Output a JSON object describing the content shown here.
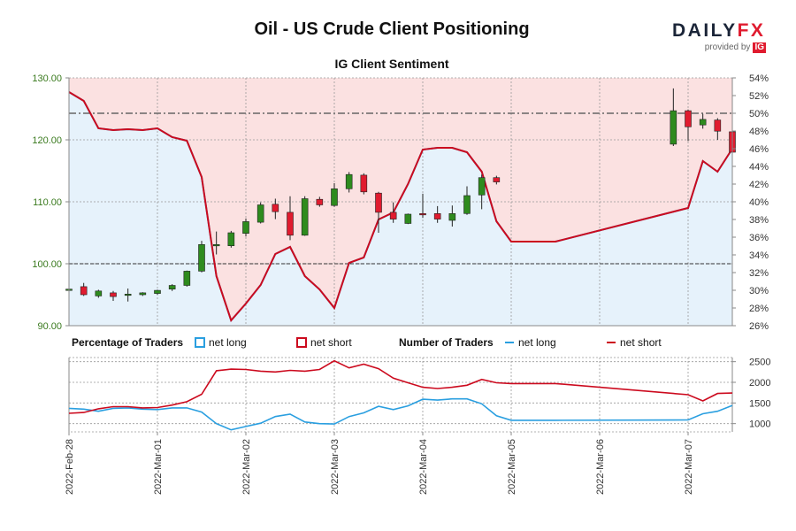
{
  "title": "Oil - US Crude Client Positioning",
  "subtitle": "IG Client Sentiment",
  "brand": {
    "name": "DAILY",
    "name_accent": "FX",
    "tagline": "provided by",
    "partner": "IG"
  },
  "colors": {
    "net_long": "#2a9fe0",
    "net_short": "#cc0a1e",
    "long_fill": "#e6f2fb",
    "short_fill": "#fbe1e1",
    "candle_up": "#2e8b1e",
    "candle_down": "#e01b2f",
    "left_axis_text": "#3a7a1e"
  },
  "legend": {
    "percentage_heading": "Percentage of Traders",
    "number_heading": "Number of Traders",
    "net_long": "net long",
    "net_short": "net short"
  },
  "chart_data": [
    {
      "type": "candlestick",
      "price_axis": {
        "side": "left",
        "ylim": [
          90,
          130
        ],
        "ticks": [
          "90.00",
          "100.00",
          "110.00",
          "120.00",
          "130.00"
        ]
      },
      "percent_axis": {
        "side": "right",
        "ylim": [
          26,
          54
        ],
        "ticks": [
          "26%",
          "28%",
          "30%",
          "32%",
          "34%",
          "36%",
          "38%",
          "40%",
          "42%",
          "44%",
          "46%",
          "48%",
          "50%",
          "52%",
          "54%"
        ]
      },
      "reference_lines": {
        "price": 100,
        "percent": 50
      },
      "x_labels": [
        "2022-Feb-28",
        "2022-Mar-01",
        "2022-Mar-02",
        "2022-Mar-03",
        "2022-Mar-04",
        "2022-Mar-05",
        "2022-Mar-06",
        "2022-Mar-07"
      ],
      "x_label_index": [
        0,
        6,
        12,
        18,
        24,
        30,
        36,
        42
      ],
      "candles": [
        {
          "i": 0,
          "o": 95.8,
          "h": 96.6,
          "l": 94.9,
          "c": 95.9
        },
        {
          "i": 1,
          "o": 96.3,
          "h": 96.9,
          "l": 94.8,
          "c": 95.0
        },
        {
          "i": 2,
          "o": 94.8,
          "h": 95.8,
          "l": 94.5,
          "c": 95.6
        },
        {
          "i": 3,
          "o": 95.3,
          "h": 95.6,
          "l": 94.0,
          "c": 94.7
        },
        {
          "i": 4,
          "o": 95.0,
          "h": 96.0,
          "l": 93.9,
          "c": 95.1
        },
        {
          "i": 5,
          "o": 95.0,
          "h": 95.4,
          "l": 94.8,
          "c": 95.3
        },
        {
          "i": 6,
          "o": 95.2,
          "h": 95.8,
          "l": 95.0,
          "c": 95.7
        },
        {
          "i": 7,
          "o": 95.9,
          "h": 96.7,
          "l": 95.6,
          "c": 96.5
        },
        {
          "i": 8,
          "o": 96.5,
          "h": 98.9,
          "l": 96.3,
          "c": 98.8
        },
        {
          "i": 9,
          "o": 98.8,
          "h": 103.7,
          "l": 98.6,
          "c": 103.1
        },
        {
          "i": 10,
          "o": 102.9,
          "h": 105.2,
          "l": 101.5,
          "c": 103.1
        },
        {
          "i": 11,
          "o": 102.9,
          "h": 105.3,
          "l": 102.6,
          "c": 105.0
        },
        {
          "i": 12,
          "o": 104.9,
          "h": 107.3,
          "l": 104.4,
          "c": 106.8
        },
        {
          "i": 13,
          "o": 106.7,
          "h": 109.9,
          "l": 106.5,
          "c": 109.5
        },
        {
          "i": 14,
          "o": 109.6,
          "h": 110.5,
          "l": 107.2,
          "c": 108.4
        },
        {
          "i": 15,
          "o": 108.3,
          "h": 110.9,
          "l": 103.8,
          "c": 104.6
        },
        {
          "i": 16,
          "o": 104.6,
          "h": 110.9,
          "l": 104.5,
          "c": 110.5
        },
        {
          "i": 17,
          "o": 110.4,
          "h": 110.8,
          "l": 109.2,
          "c": 109.5
        },
        {
          "i": 18,
          "o": 109.4,
          "h": 113.0,
          "l": 109.2,
          "c": 112.1
        },
        {
          "i": 19,
          "o": 112.1,
          "h": 114.8,
          "l": 111.5,
          "c": 114.4
        },
        {
          "i": 20,
          "o": 114.3,
          "h": 114.6,
          "l": 111.2,
          "c": 111.6
        },
        {
          "i": 21,
          "o": 111.4,
          "h": 111.6,
          "l": 105.0,
          "c": 108.3
        },
        {
          "i": 22,
          "o": 108.3,
          "h": 109.9,
          "l": 106.6,
          "c": 107.2
        },
        {
          "i": 23,
          "o": 106.5,
          "h": 108.1,
          "l": 106.4,
          "c": 108.0
        },
        {
          "i": 24,
          "o": 108.1,
          "h": 111.3,
          "l": 107.4,
          "c": 107.9
        },
        {
          "i": 25,
          "o": 108.1,
          "h": 109.3,
          "l": 106.6,
          "c": 107.2
        },
        {
          "i": 26,
          "o": 107.0,
          "h": 109.4,
          "l": 106.0,
          "c": 108.1
        },
        {
          "i": 27,
          "o": 108.1,
          "h": 112.5,
          "l": 107.9,
          "c": 111.0
        },
        {
          "i": 28,
          "o": 111.1,
          "h": 114.4,
          "l": 108.8,
          "c": 113.9
        },
        {
          "i": 29,
          "o": 113.9,
          "h": 114.2,
          "l": 112.8,
          "c": 113.2
        },
        {
          "i": 41,
          "o": 119.3,
          "h": 128.3,
          "l": 119.0,
          "c": 124.7
        },
        {
          "i": 42,
          "o": 124.7,
          "h": 124.9,
          "l": 119.8,
          "c": 122.1
        },
        {
          "i": 43,
          "o": 122.4,
          "h": 124.2,
          "l": 121.8,
          "c": 123.3
        },
        {
          "i": 44,
          "o": 123.2,
          "h": 123.5,
          "l": 120.0,
          "c": 121.4
        },
        {
          "i": 45,
          "o": 121.3,
          "h": 121.7,
          "l": 113.5,
          "c": 118.0
        }
      ],
      "net_long_pct": [
        {
          "i": 0,
          "v": 52.4
        },
        {
          "i": 1,
          "v": 51.4
        },
        {
          "i": 2,
          "v": 48.3
        },
        {
          "i": 3,
          "v": 48.1
        },
        {
          "i": 4,
          "v": 48.2
        },
        {
          "i": 5,
          "v": 48.1
        },
        {
          "i": 6,
          "v": 48.3
        },
        {
          "i": 7,
          "v": 47.3
        },
        {
          "i": 8,
          "v": 46.9
        },
        {
          "i": 9,
          "v": 42.8
        },
        {
          "i": 10,
          "v": 31.6
        },
        {
          "i": 11,
          "v": 26.6
        },
        {
          "i": 12,
          "v": 28.5
        },
        {
          "i": 13,
          "v": 30.6
        },
        {
          "i": 14,
          "v": 34.1
        },
        {
          "i": 15,
          "v": 34.9
        },
        {
          "i": 16,
          "v": 31.6
        },
        {
          "i": 17,
          "v": 30.1
        },
        {
          "i": 18,
          "v": 28.0
        },
        {
          "i": 19,
          "v": 33.1
        },
        {
          "i": 20,
          "v": 33.7
        },
        {
          "i": 21,
          "v": 38.0
        },
        {
          "i": 22,
          "v": 38.8
        },
        {
          "i": 23,
          "v": 42.0
        },
        {
          "i": 24,
          "v": 45.9
        },
        {
          "i": 25,
          "v": 46.1
        },
        {
          "i": 26,
          "v": 46.1
        },
        {
          "i": 27,
          "v": 45.6
        },
        {
          "i": 28,
          "v": 43.4
        },
        {
          "i": 29,
          "v": 37.8
        },
        {
          "i": 30,
          "v": 35.5
        },
        {
          "i": 33,
          "v": 35.5
        },
        {
          "i": 42,
          "v": 39.3
        },
        {
          "i": 43,
          "v": 44.6
        },
        {
          "i": 44,
          "v": 43.4
        },
        {
          "i": 45,
          "v": 46.0
        }
      ],
      "net_short_pct": [
        {
          "i": 0,
          "v": 52.4
        },
        {
          "i": 1,
          "v": 51.4
        },
        {
          "i": 2,
          "v": 48.3
        },
        {
          "i": 3,
          "v": 48.1
        },
        {
          "i": 4,
          "v": 48.2
        },
        {
          "i": 5,
          "v": 48.1
        },
        {
          "i": 6,
          "v": 48.3
        },
        {
          "i": 7,
          "v": 47.3
        },
        {
          "i": 8,
          "v": 46.9
        },
        {
          "i": 9,
          "v": 42.8
        },
        {
          "i": 10,
          "v": 31.6
        },
        {
          "i": 11,
          "v": 26.6
        },
        {
          "i": 12,
          "v": 28.5
        },
        {
          "i": 13,
          "v": 30.6
        },
        {
          "i": 14,
          "v": 34.1
        },
        {
          "i": 15,
          "v": 34.9
        },
        {
          "i": 16,
          "v": 31.6
        },
        {
          "i": 17,
          "v": 30.1
        },
        {
          "i": 18,
          "v": 28.0
        },
        {
          "i": 19,
          "v": 33.1
        },
        {
          "i": 20,
          "v": 33.7
        },
        {
          "i": 21,
          "v": 38.0
        },
        {
          "i": 22,
          "v": 38.8
        },
        {
          "i": 23,
          "v": 42.0
        },
        {
          "i": 24,
          "v": 45.9
        },
        {
          "i": 25,
          "v": 46.1
        },
        {
          "i": 26,
          "v": 46.1
        },
        {
          "i": 27,
          "v": 45.6
        },
        {
          "i": 28,
          "v": 43.4
        },
        {
          "i": 29,
          "v": 37.8
        },
        {
          "i": 30,
          "v": 35.5
        },
        {
          "i": 33,
          "v": 35.5
        },
        {
          "i": 42,
          "v": 39.3
        },
        {
          "i": 43,
          "v": 44.6
        },
        {
          "i": 44,
          "v": 43.4
        },
        {
          "i": 45,
          "v": 46.0
        }
      ]
    },
    {
      "type": "line",
      "axis": {
        "side": "right",
        "ylim": [
          800,
          2600
        ],
        "ticks": [
          "1000",
          "1500",
          "2000",
          "2500"
        ]
      },
      "series": [
        {
          "name": "net long",
          "points": [
            {
              "i": 0,
              "v": 1370
            },
            {
              "i": 1,
              "v": 1350
            },
            {
              "i": 2,
              "v": 1300
            },
            {
              "i": 3,
              "v": 1370
            },
            {
              "i": 4,
              "v": 1380
            },
            {
              "i": 5,
              "v": 1350
            },
            {
              "i": 6,
              "v": 1340
            },
            {
              "i": 7,
              "v": 1380
            },
            {
              "i": 8,
              "v": 1380
            },
            {
              "i": 9,
              "v": 1280
            },
            {
              "i": 10,
              "v": 1000
            },
            {
              "i": 11,
              "v": 850
            },
            {
              "i": 12,
              "v": 930
            },
            {
              "i": 13,
              "v": 1010
            },
            {
              "i": 14,
              "v": 1170
            },
            {
              "i": 15,
              "v": 1230
            },
            {
              "i": 16,
              "v": 1040
            },
            {
              "i": 17,
              "v": 1000
            },
            {
              "i": 18,
              "v": 990
            },
            {
              "i": 19,
              "v": 1170
            },
            {
              "i": 20,
              "v": 1260
            },
            {
              "i": 21,
              "v": 1420
            },
            {
              "i": 22,
              "v": 1340
            },
            {
              "i": 23,
              "v": 1430
            },
            {
              "i": 24,
              "v": 1590
            },
            {
              "i": 25,
              "v": 1570
            },
            {
              "i": 26,
              "v": 1600
            },
            {
              "i": 27,
              "v": 1600
            },
            {
              "i": 28,
              "v": 1480
            },
            {
              "i": 29,
              "v": 1190
            },
            {
              "i": 30,
              "v": 1080
            },
            {
              "i": 33,
              "v": 1080
            },
            {
              "i": 42,
              "v": 1090
            },
            {
              "i": 43,
              "v": 1240
            },
            {
              "i": 44,
              "v": 1300
            },
            {
              "i": 45,
              "v": 1440
            }
          ]
        },
        {
          "name": "net short",
          "points": [
            {
              "i": 0,
              "v": 1250
            },
            {
              "i": 1,
              "v": 1270
            },
            {
              "i": 2,
              "v": 1360
            },
            {
              "i": 3,
              "v": 1410
            },
            {
              "i": 4,
              "v": 1410
            },
            {
              "i": 5,
              "v": 1380
            },
            {
              "i": 6,
              "v": 1390
            },
            {
              "i": 7,
              "v": 1450
            },
            {
              "i": 8,
              "v": 1530
            },
            {
              "i": 9,
              "v": 1710
            },
            {
              "i": 10,
              "v": 2280
            },
            {
              "i": 11,
              "v": 2320
            },
            {
              "i": 12,
              "v": 2310
            },
            {
              "i": 13,
              "v": 2270
            },
            {
              "i": 14,
              "v": 2250
            },
            {
              "i": 15,
              "v": 2290
            },
            {
              "i": 16,
              "v": 2270
            },
            {
              "i": 17,
              "v": 2310
            },
            {
              "i": 18,
              "v": 2520
            },
            {
              "i": 19,
              "v": 2350
            },
            {
              "i": 20,
              "v": 2440
            },
            {
              "i": 21,
              "v": 2330
            },
            {
              "i": 22,
              "v": 2100
            },
            {
              "i": 23,
              "v": 1990
            },
            {
              "i": 24,
              "v": 1880
            },
            {
              "i": 25,
              "v": 1850
            },
            {
              "i": 26,
              "v": 1880
            },
            {
              "i": 27,
              "v": 1930
            },
            {
              "i": 28,
              "v": 2070
            },
            {
              "i": 29,
              "v": 1990
            },
            {
              "i": 30,
              "v": 1970
            },
            {
              "i": 33,
              "v": 1970
            },
            {
              "i": 42,
              "v": 1700
            },
            {
              "i": 43,
              "v": 1550
            },
            {
              "i": 44,
              "v": 1730
            },
            {
              "i": 45,
              "v": 1740
            }
          ]
        }
      ]
    }
  ]
}
